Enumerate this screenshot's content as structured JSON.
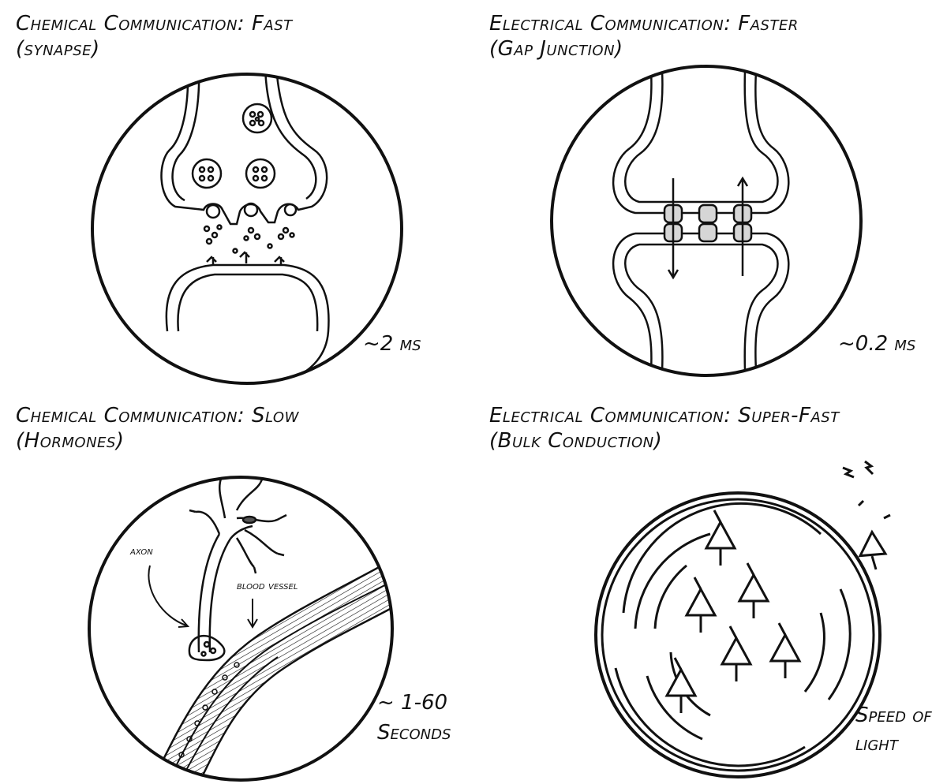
{
  "panels": [
    {
      "title": "Chemical Communication: Fast",
      "subtitle": "(synapse)",
      "stat": "~2 ms"
    },
    {
      "title": "Electrical Communication: Faster",
      "subtitle": "(Gap Junction)",
      "stat": "~0.2 ms"
    },
    {
      "title": "Chemical Communication: Slow",
      "subtitle": "(Hormones)",
      "stat_line1": "~ 1-60",
      "stat_line2": "Seconds",
      "labels": {
        "axon": "axon",
        "blood_vessel": "blood vessel"
      }
    },
    {
      "title": "Electrical Communication: Super-Fast",
      "subtitle": "(Bulk Conduction)",
      "stat_line1": "Speed of",
      "stat_line2": "light"
    }
  ]
}
